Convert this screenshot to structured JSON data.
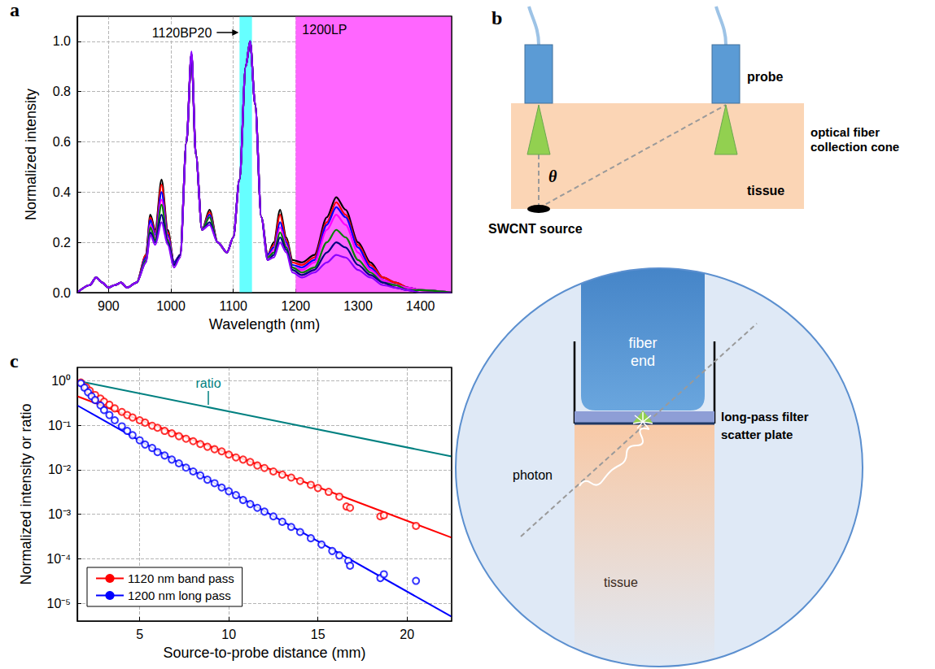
{
  "chart_data": [
    {
      "panel": "a",
      "type": "line",
      "x_label": "Wavelength (nm)",
      "y_label": "Normalized intensity",
      "grid": true,
      "xlim": [
        850,
        1450
      ],
      "xticks": [
        900,
        1000,
        1100,
        1200,
        1300,
        1400
      ],
      "ylim": [
        0,
        1.1
      ],
      "yticks": [
        {
          "value": 0,
          "label": "0.0"
        },
        0.2,
        0.4,
        0.6,
        0.8,
        {
          "value": 1,
          "label": "1.0"
        }
      ],
      "bands": [
        {
          "label": "1120BP20",
          "range": [
            1110,
            1130
          ],
          "color": "#66ffff"
        },
        {
          "label": "1200LP",
          "range": [
            1200,
            1450
          ],
          "color": "#ff66ff"
        }
      ],
      "x": [
        850,
        870,
        880,
        890,
        900,
        910,
        920,
        930,
        945,
        960,
        967,
        975,
        985,
        995,
        1005,
        1015,
        1025,
        1033,
        1040,
        1050,
        1062,
        1075,
        1090,
        1100,
        1110,
        1120,
        1127,
        1135,
        1145,
        1155,
        1165,
        1175,
        1185,
        1195,
        1210,
        1230,
        1250,
        1265,
        1280,
        1300,
        1320,
        1340,
        1360,
        1380,
        1400,
        1450
      ],
      "series": [
        {
          "color": "#000000",
          "values": [
            0.0,
            0.03,
            0.06,
            0.04,
            0.02,
            0.03,
            0.04,
            0.02,
            0.04,
            0.15,
            0.31,
            0.25,
            0.45,
            0.25,
            0.12,
            0.15,
            0.6,
            0.95,
            0.55,
            0.25,
            0.33,
            0.2,
            0.16,
            0.22,
            0.45,
            0.9,
            1.0,
            0.75,
            0.3,
            0.15,
            0.2,
            0.33,
            0.22,
            0.13,
            0.12,
            0.15,
            0.3,
            0.38,
            0.33,
            0.2,
            0.12,
            0.06,
            0.04,
            0.02,
            0.01,
            0.0
          ]
        },
        {
          "color": "#ff0000",
          "values": [
            0.0,
            0.03,
            0.06,
            0.04,
            0.02,
            0.03,
            0.04,
            0.02,
            0.04,
            0.15,
            0.3,
            0.24,
            0.43,
            0.24,
            0.12,
            0.15,
            0.6,
            0.95,
            0.55,
            0.25,
            0.32,
            0.2,
            0.16,
            0.22,
            0.45,
            0.9,
            1.0,
            0.75,
            0.3,
            0.15,
            0.19,
            0.31,
            0.21,
            0.12,
            0.11,
            0.14,
            0.28,
            0.36,
            0.31,
            0.19,
            0.11,
            0.06,
            0.04,
            0.02,
            0.01,
            0.0
          ]
        },
        {
          "color": "#0000ff",
          "values": [
            0.0,
            0.03,
            0.06,
            0.04,
            0.02,
            0.03,
            0.04,
            0.02,
            0.04,
            0.14,
            0.29,
            0.23,
            0.4,
            0.23,
            0.12,
            0.15,
            0.6,
            0.95,
            0.55,
            0.25,
            0.31,
            0.2,
            0.16,
            0.22,
            0.45,
            0.9,
            1.0,
            0.75,
            0.3,
            0.15,
            0.18,
            0.28,
            0.2,
            0.11,
            0.1,
            0.13,
            0.27,
            0.34,
            0.3,
            0.18,
            0.1,
            0.05,
            0.03,
            0.02,
            0.01,
            0.0
          ]
        },
        {
          "color": "#ff00ff",
          "values": [
            0.0,
            0.03,
            0.06,
            0.04,
            0.02,
            0.03,
            0.04,
            0.02,
            0.04,
            0.13,
            0.27,
            0.22,
            0.37,
            0.22,
            0.11,
            0.15,
            0.6,
            0.95,
            0.55,
            0.25,
            0.3,
            0.2,
            0.16,
            0.22,
            0.45,
            0.9,
            1.0,
            0.75,
            0.3,
            0.14,
            0.17,
            0.26,
            0.19,
            0.1,
            0.09,
            0.12,
            0.25,
            0.31,
            0.27,
            0.16,
            0.09,
            0.05,
            0.03,
            0.02,
            0.01,
            0.0
          ]
        },
        {
          "color": "#008000",
          "values": [
            0.0,
            0.03,
            0.06,
            0.04,
            0.02,
            0.03,
            0.04,
            0.02,
            0.04,
            0.13,
            0.26,
            0.21,
            0.35,
            0.21,
            0.11,
            0.15,
            0.6,
            0.95,
            0.55,
            0.25,
            0.3,
            0.2,
            0.16,
            0.22,
            0.45,
            0.9,
            1.0,
            0.75,
            0.3,
            0.14,
            0.16,
            0.24,
            0.18,
            0.1,
            0.08,
            0.1,
            0.2,
            0.25,
            0.22,
            0.13,
            0.08,
            0.04,
            0.03,
            0.01,
            0.01,
            0.0
          ]
        },
        {
          "color": "#000080",
          "values": [
            0.0,
            0.03,
            0.06,
            0.04,
            0.02,
            0.03,
            0.04,
            0.02,
            0.04,
            0.12,
            0.24,
            0.2,
            0.31,
            0.2,
            0.11,
            0.15,
            0.6,
            0.95,
            0.55,
            0.25,
            0.28,
            0.2,
            0.16,
            0.22,
            0.45,
            0.9,
            1.0,
            0.75,
            0.3,
            0.13,
            0.15,
            0.22,
            0.17,
            0.09,
            0.07,
            0.09,
            0.16,
            0.2,
            0.18,
            0.11,
            0.07,
            0.04,
            0.02,
            0.01,
            0.0,
            0.0
          ]
        },
        {
          "color": "#8b00ff",
          "values": [
            0.0,
            0.03,
            0.06,
            0.04,
            0.02,
            0.03,
            0.04,
            0.02,
            0.04,
            0.12,
            0.23,
            0.19,
            0.28,
            0.19,
            0.1,
            0.14,
            0.6,
            0.96,
            0.55,
            0.25,
            0.27,
            0.2,
            0.16,
            0.22,
            0.45,
            0.9,
            1.0,
            0.75,
            0.3,
            0.13,
            0.14,
            0.2,
            0.16,
            0.08,
            0.06,
            0.08,
            0.12,
            0.15,
            0.14,
            0.09,
            0.06,
            0.03,
            0.02,
            0.01,
            0.0,
            0.0
          ]
        }
      ]
    },
    {
      "panel": "c",
      "type": "line",
      "x_label": "Source-to-probe distance (mm)",
      "y_label": "Normalized intensity or ratio",
      "log": "y",
      "grid": true,
      "legend": "lower left",
      "xlim": [
        1.5,
        22.5
      ],
      "xticks": [
        5,
        10,
        15,
        20
      ],
      "ylim": [
        4e-06,
        2
      ],
      "yticks": [
        {
          "value": 1e-05,
          "label": "10⁻⁵"
        },
        {
          "value": 0.0001,
          "label": "10⁻⁴"
        },
        {
          "value": 0.001,
          "label": "10⁻³"
        },
        {
          "value": 0.01,
          "label": "10⁻²"
        },
        {
          "value": 0.1,
          "label": "10⁻¹"
        },
        {
          "value": 1,
          "label": "10⁰"
        }
      ],
      "series": [
        {
          "name": "1120 nm band pass",
          "type": "line",
          "color": "#ff0000",
          "x": [
            1.5,
            22.5
          ],
          "values": [
            0.45,
            0.0003
          ],
          "points": {
            "type": "scatter",
            "marker": "open circle",
            "x": [
              1.7,
              2.0,
              2.2,
              2.5,
              2.8,
              3.0,
              3.3,
              3.6,
              4.0,
              4.3,
              4.6,
              5.0,
              5.3,
              5.7,
              6.0,
              6.4,
              6.8,
              7.2,
              7.6,
              8.0,
              8.4,
              8.8,
              9.2,
              9.6,
              10.0,
              10.4,
              10.8,
              11.2,
              11.6,
              12.0,
              12.5,
              13.0,
              13.5,
              14.0,
              14.6,
              15.0,
              15.6,
              16.2,
              16.6,
              16.8,
              18.5,
              18.7,
              20.5
            ],
            "values": [
              0.92,
              0.72,
              0.6,
              0.48,
              0.4,
              0.34,
              0.29,
              0.24,
              0.2,
              0.17,
              0.15,
              0.13,
              0.115,
              0.098,
              0.088,
              0.075,
              0.066,
              0.057,
              0.05,
              0.044,
              0.038,
              0.033,
              0.029,
              0.026,
              0.022,
              0.019,
              0.017,
              0.015,
              0.0125,
              0.011,
              0.0092,
              0.0078,
              0.0067,
              0.0056,
              0.0046,
              0.0039,
              0.0032,
              0.0025,
              0.0015,
              0.0014,
              0.0009,
              0.00095,
              0.00055
            ]
          }
        },
        {
          "name": "1200 nm long pass",
          "type": "line",
          "color": "#0000ff",
          "x": [
            1.5,
            22.5
          ],
          "values": [
            0.28,
            5e-06
          ],
          "points": {
            "type": "scatter",
            "marker": "open circle",
            "x": [
              1.7,
              1.9,
              2.1,
              2.3,
              2.5,
              2.8,
              3.0,
              3.3,
              3.6,
              4.0,
              4.3,
              4.6,
              5.0,
              5.3,
              5.7,
              6.0,
              6.4,
              6.8,
              7.2,
              7.6,
              8.0,
              8.4,
              8.8,
              9.2,
              9.6,
              10.0,
              10.4,
              10.8,
              11.2,
              11.6,
              12.0,
              12.5,
              13.0,
              13.5,
              14.0,
              14.6,
              15.2,
              15.8,
              16.2,
              16.7,
              16.8,
              18.5,
              18.7,
              20.5
            ],
            "values": [
              0.88,
              0.7,
              0.55,
              0.45,
              0.37,
              0.28,
              0.22,
              0.17,
              0.13,
              0.095,
              0.075,
              0.06,
              0.046,
              0.037,
              0.031,
              0.025,
              0.021,
              0.017,
              0.014,
              0.0112,
              0.0092,
              0.0075,
              0.006,
              0.005,
              0.004,
              0.0033,
              0.0027,
              0.0021,
              0.0017,
              0.0014,
              0.00115,
              0.0009,
              0.00068,
              0.00052,
              0.0004,
              0.00029,
              0.00021,
              0.00015,
              0.00012,
              9e-05,
              7e-05,
              3.7e-05,
              4.5e-05,
              3.2e-05
            ]
          }
        },
        {
          "label": "ratio",
          "type": "line",
          "color": "#008080",
          "x": [
            1.5,
            22.5
          ],
          "values": [
            1,
            0.02
          ]
        }
      ]
    }
  ],
  "diagram": {
    "panel": "b",
    "top": {
      "probe": "probe",
      "cone": "optical fiber collection cone",
      "tissue": "tissue",
      "source": "SWCNT source",
      "angle": "θ"
    },
    "inset": {
      "fiber_end": "fiber end",
      "filter": "long-pass filter",
      "scatter_plate": "scatter plate",
      "photon": "photon",
      "tissue": "tissue"
    }
  }
}
